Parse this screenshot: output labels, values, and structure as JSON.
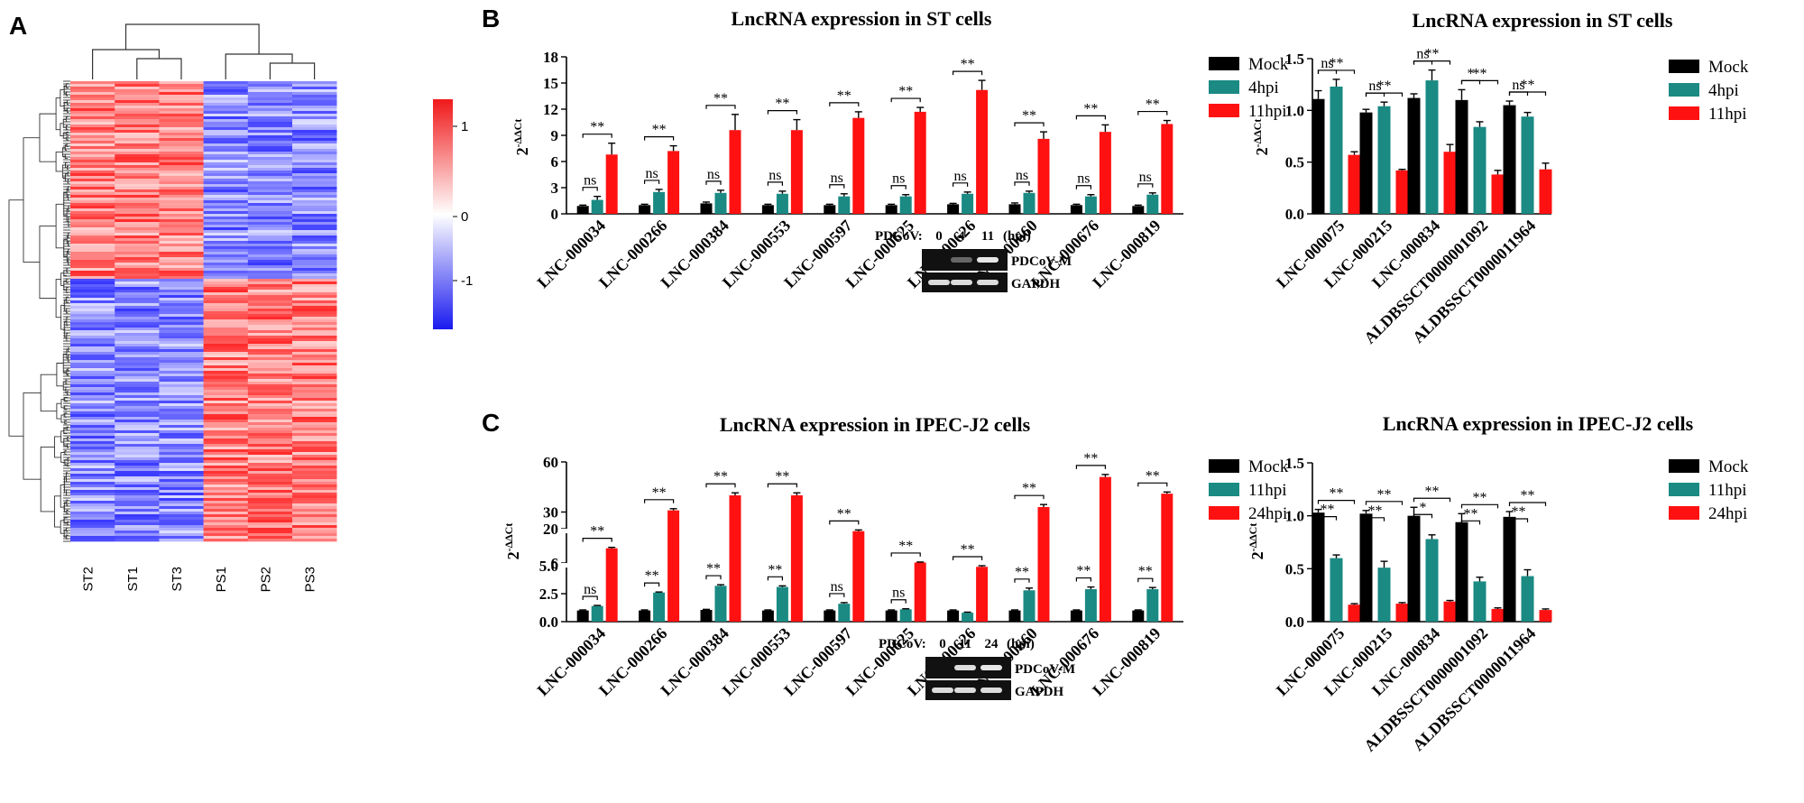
{
  "colors": {
    "mock": "#000000",
    "mid": "#1a8a83",
    "late": "#ff1111",
    "hm_high": "#f0191a",
    "hm_mid": "#ffffff",
    "hm_low": "#1a1af0"
  },
  "panel_labels": [
    "A",
    "B",
    "C"
  ],
  "heatmap": {
    "columns": [
      "ST2",
      "ST1",
      "ST3",
      "PS1",
      "PS2",
      "PS3"
    ],
    "colorbar_ticks": [
      "1",
      "0",
      "-1"
    ]
  },
  "gels": [
    {
      "header": "PDCoV:",
      "lanes": [
        "0",
        "4",
        "11"
      ],
      "unit": "(hpi)",
      "bands": [
        "PDCoV-M",
        "GAPDH"
      ]
    },
    {
      "header": "PDCoV:",
      "lanes": [
        "0",
        "11",
        "24"
      ],
      "unit": "(hpi)",
      "bands": [
        "PDCoV-M",
        "GAPDH"
      ]
    }
  ],
  "chart_data": [
    {
      "id": "B1",
      "type": "bar",
      "title": "LncRNA expression in ST cells",
      "ylabel": "2-ΔΔCt",
      "ylim": [
        0,
        18
      ],
      "yticks": [
        0,
        3,
        6,
        9,
        12,
        15,
        18
      ],
      "categories": [
        "LNC-000034",
        "LNC-000266",
        "LNC-000384",
        "LNC-000553",
        "LNC-000597",
        "LNC-000625",
        "LNC-000626",
        "LNC-000660",
        "LNC-000676",
        "LNC-000819"
      ],
      "legend": [
        "Mock",
        "4hpi",
        "11hpi"
      ],
      "series": [
        {
          "name": "Mock",
          "values": [
            0.9,
            1.0,
            1.2,
            1.0,
            1.0,
            1.0,
            1.1,
            1.1,
            1.0,
            0.9
          ],
          "errors": [
            0.1,
            0.1,
            0.15,
            0.1,
            0.1,
            0.1,
            0.1,
            0.15,
            0.1,
            0.1
          ]
        },
        {
          "name": "4hpi",
          "values": [
            1.6,
            2.5,
            2.4,
            2.3,
            2.0,
            2.0,
            2.3,
            2.4,
            2.0,
            2.2
          ],
          "errors": [
            0.4,
            0.3,
            0.3,
            0.3,
            0.3,
            0.2,
            0.2,
            0.2,
            0.2,
            0.2
          ]
        },
        {
          "name": "11hpi",
          "values": [
            6.8,
            7.2,
            9.6,
            9.6,
            11.0,
            11.7,
            14.2,
            8.6,
            9.4,
            10.3
          ],
          "errors": [
            1.3,
            0.6,
            1.8,
            1.2,
            0.7,
            0.5,
            1.1,
            0.8,
            0.8,
            0.4
          ]
        }
      ],
      "sig_top": [
        "**",
        "**",
        "**",
        "**",
        "**",
        "**",
        "**",
        "**",
        "**",
        "**"
      ],
      "sig_low": [
        "ns",
        "ns",
        "ns",
        "ns",
        "ns",
        "ns",
        "ns",
        "ns",
        "ns",
        "ns"
      ]
    },
    {
      "id": "B2",
      "type": "bar",
      "title": "LncRNA expression in ST cells",
      "ylabel": "2-ΔΔCt",
      "ylim": [
        0,
        1.5
      ],
      "yticks": [
        0.0,
        0.5,
        1.0,
        1.5
      ],
      "categories": [
        "LNC-000075",
        "LNC-000215",
        "LNC-000834",
        "ALDBSSCT0000001092",
        "ALDBSSCT0000011964"
      ],
      "legend": [
        "Mock",
        "4hpi",
        "11hpi"
      ],
      "series": [
        {
          "name": "Mock",
          "values": [
            1.11,
            0.98,
            1.12,
            1.1,
            1.05
          ],
          "errors": [
            0.08,
            0.03,
            0.04,
            0.1,
            0.04
          ]
        },
        {
          "name": "4hpi",
          "values": [
            1.23,
            1.04,
            1.29,
            0.84,
            0.94
          ],
          "errors": [
            0.07,
            0.04,
            0.1,
            0.05,
            0.04
          ]
        },
        {
          "name": "11hpi",
          "values": [
            0.57,
            0.42,
            0.6,
            0.38,
            0.43
          ],
          "errors": [
            0.03,
            0.01,
            0.07,
            0.04,
            0.06
          ]
        }
      ],
      "sig_top": [
        "**",
        "**",
        "**",
        "**",
        "**"
      ],
      "sig_low": [
        "ns",
        "ns",
        "ns",
        "*",
        "ns"
      ]
    },
    {
      "id": "C1",
      "type": "bar",
      "title": "LncRNA expression in IPEC-J2 cells",
      "ylabel": "2-ΔΔCt",
      "ylim": [
        0,
        60
      ],
      "yticks": [
        0.0,
        2.5,
        5.0,
        6,
        20,
        30,
        60
      ],
      "axis_breaks": "broken y-axis: 0-5.0 | 6-20 | 20-60",
      "categories": [
        "LNC-000034",
        "LNC-000266",
        "LNC-000384",
        "LNC-000553",
        "LNC-000597",
        "LNC-000625",
        "LNC-000626",
        "LNC-000660",
        "LNC-000676",
        "LNC-000819"
      ],
      "legend": [
        "Mock",
        "11hpi",
        "24hpi"
      ],
      "series": [
        {
          "name": "Mock",
          "values": [
            1.0,
            1.0,
            1.05,
            1.0,
            1.0,
            1.0,
            1.0,
            1.0,
            1.0,
            1.0
          ],
          "errors": [
            0.05,
            0.05,
            0.05,
            0.05,
            0.05,
            0.05,
            0.05,
            0.05,
            0.05,
            0.05
          ]
        },
        {
          "name": "11hpi",
          "values": [
            1.4,
            2.6,
            3.2,
            3.1,
            1.6,
            1.1,
            0.8,
            2.8,
            2.9,
            2.9
          ],
          "errors": [
            0.05,
            0.05,
            0.1,
            0.1,
            0.1,
            0.05,
            0.05,
            0.2,
            0.2,
            0.15
          ]
        },
        {
          "name": "24hpi",
          "values": [
            12,
            31,
            40,
            40,
            19,
            6.2,
            4.9,
            33,
            51,
            41
          ],
          "errors": [
            0.4,
            1.0,
            1.5,
            1.5,
            0.5,
            0.2,
            0.1,
            1.5,
            1.5,
            1.0
          ]
        }
      ],
      "sig_top": [
        "**",
        "**",
        "**",
        "**",
        "**",
        "**",
        "**",
        "**",
        "**",
        "**"
      ],
      "sig_low": [
        "ns",
        "**",
        "**",
        "**",
        "ns",
        "ns",
        "",
        "**",
        "**",
        "**"
      ]
    },
    {
      "id": "C2",
      "type": "bar",
      "title": "LncRNA expression in IPEC-J2 cells",
      "ylabel": "2-ΔΔCt",
      "ylim": [
        0,
        1.5
      ],
      "yticks": [
        0.0,
        0.5,
        1.0,
        1.5
      ],
      "categories": [
        "LNC-000075",
        "LNC-000215",
        "LNC-000834",
        "ALDBSSCT0000001092",
        "ALDBSSCT0000011964"
      ],
      "legend": [
        "Mock",
        "11hpi",
        "24hpi"
      ],
      "series": [
        {
          "name": "Mock",
          "values": [
            1.03,
            1.02,
            1.0,
            0.94,
            0.99
          ],
          "errors": [
            0.03,
            0.03,
            0.08,
            0.08,
            0.05
          ]
        },
        {
          "name": "11hpi",
          "values": [
            0.6,
            0.51,
            0.78,
            0.38,
            0.43
          ],
          "errors": [
            0.03,
            0.06,
            0.04,
            0.04,
            0.06
          ]
        },
        {
          "name": "24hpi",
          "values": [
            0.16,
            0.17,
            0.19,
            0.12,
            0.11
          ],
          "errors": [
            0.01,
            0.01,
            0.01,
            0.01,
            0.01
          ]
        }
      ],
      "sig_top": [
        "**",
        "**",
        "**",
        "**",
        "**"
      ],
      "sig_low": [
        "**",
        "**",
        "*",
        "**",
        "**"
      ]
    }
  ]
}
